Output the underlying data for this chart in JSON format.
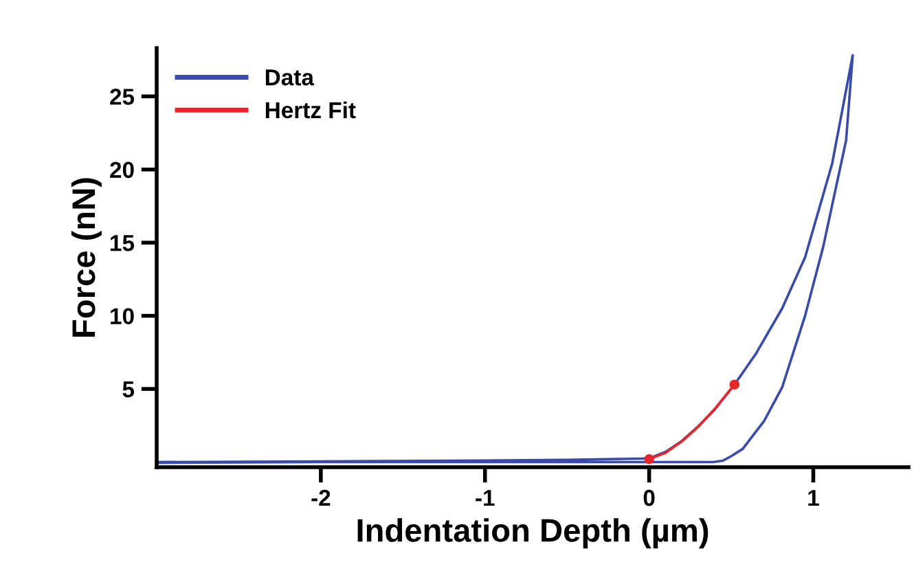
{
  "chart_data": {
    "type": "line",
    "xlabel": "Indentation Depth (µm)",
    "ylabel": "Force (nN)",
    "xlim": [
      -3.0,
      1.58
    ],
    "ylim": [
      -0.35,
      28.3
    ],
    "xticks": [
      -2,
      -1,
      0,
      1
    ],
    "yticks": [
      5,
      10,
      15,
      20,
      25
    ],
    "grid": false,
    "legend": "top left",
    "series": [
      {
        "name": "Data",
        "color": "#3a4aa8",
        "marker": "none",
        "x": [
          -3.0,
          -2.0,
          -1.0,
          -0.5,
          0.0,
          0.1,
          0.2,
          0.3,
          0.4,
          0.52,
          0.65,
          0.81,
          0.95,
          1.115,
          1.24,
          1.2,
          1.06,
          0.95,
          0.81,
          0.7,
          0.57,
          0.5,
          0.45,
          0.39,
          0.0,
          -1.0,
          -2.0,
          -3.0
        ],
        "values": [
          0.0,
          0.05,
          0.1,
          0.15,
          0.25,
          0.7,
          1.45,
          2.45,
          3.6,
          5.3,
          7.4,
          10.5,
          14.0,
          20.4,
          27.8,
          22.0,
          14.7,
          10.0,
          5.1,
          2.8,
          0.9,
          0.4,
          0.1,
          0.0,
          0.0,
          0.0,
          0.0,
          -0.05
        ]
      },
      {
        "name": "Hertz Fit",
        "color": "#e8262b",
        "marker": "none",
        "x": [
          0.0,
          0.1,
          0.2,
          0.3,
          0.4,
          0.52
        ],
        "values": [
          0.2,
          0.63,
          1.42,
          2.43,
          3.64,
          5.3
        ]
      },
      {
        "type": "scatter",
        "color": "#e8262b",
        "marker": "circle",
        "x": [
          0.0,
          0.52
        ],
        "values": [
          0.2,
          5.3
        ]
      }
    ]
  }
}
